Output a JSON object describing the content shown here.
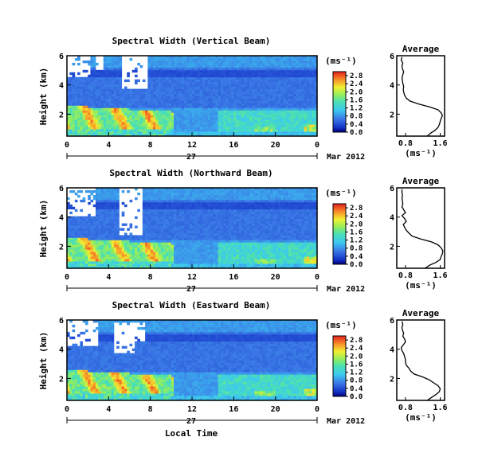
{
  "chart_data": [
    {
      "type": "heatmap",
      "title": "Spectral Width (Vertical Beam)",
      "ylabel": "Height (km)",
      "x_ticks": [
        "0",
        "4",
        "8",
        "12",
        "16",
        "20",
        "0"
      ],
      "y_ticks": [
        "2",
        "4",
        "6"
      ],
      "ylim": [
        0.5,
        6
      ],
      "xlim": [
        0,
        24
      ],
      "date_day": "27",
      "date_month": "Mar 2012",
      "colorbar": {
        "unit": "(ms⁻¹)",
        "ticks": [
          "0.0",
          "0.4",
          "0.8",
          "1.2",
          "1.6",
          "2.0",
          "2.4",
          "2.8"
        ],
        "range": [
          0,
          3.0
        ]
      },
      "average": {
        "title": "Average",
        "xlabel": "(ms⁻¹)",
        "x_ticks": [
          "0.8",
          "1.6"
        ],
        "y_ticks": [
          "2",
          "4",
          "6"
        ],
        "xlim": [
          0.6,
          1.7
        ],
        "height": [
          0.5,
          0.7,
          0.9,
          1.1,
          1.3,
          1.5,
          1.7,
          1.9,
          2.1,
          2.3,
          2.5,
          2.7,
          2.9,
          3.1,
          3.3,
          3.5,
          3.7,
          3.9,
          4.1,
          4.3,
          4.5,
          4.7,
          4.9,
          5.1,
          5.3,
          5.5,
          5.7,
          5.9
        ],
        "width": [
          1.3,
          1.38,
          1.48,
          1.55,
          1.58,
          1.6,
          1.62,
          1.65,
          1.62,
          1.55,
          1.35,
          1.1,
          0.9,
          0.82,
          0.78,
          0.76,
          0.75,
          0.76,
          0.74,
          0.73,
          0.72,
          0.74,
          0.76,
          0.73,
          0.72,
          0.74,
          0.7,
          0.72
        ]
      }
    },
    {
      "type": "heatmap",
      "title": "Spectral Width (Northward Beam)",
      "ylabel": "Height (km)",
      "x_ticks": [
        "0",
        "4",
        "8",
        "12",
        "16",
        "20",
        "0"
      ],
      "y_ticks": [
        "2",
        "4",
        "6"
      ],
      "ylim": [
        0.5,
        6
      ],
      "xlim": [
        0,
        24
      ],
      "date_day": "27",
      "date_month": "Mar 2012",
      "colorbar": {
        "unit": "(ms⁻¹)",
        "ticks": [
          "0.0",
          "0.4",
          "0.8",
          "1.2",
          "1.6",
          "2.0",
          "2.4",
          "2.8"
        ],
        "range": [
          0,
          3.0
        ]
      },
      "average": {
        "title": "Average",
        "xlabel": "(ms⁻¹)",
        "x_ticks": [
          "0.8",
          "1.6"
        ],
        "y_ticks": [
          "2",
          "4",
          "6"
        ],
        "xlim": [
          0.6,
          1.7
        ],
        "height": [
          0.5,
          0.7,
          0.9,
          1.1,
          1.3,
          1.5,
          1.7,
          1.9,
          2.1,
          2.3,
          2.5,
          2.7,
          2.9,
          3.1,
          3.3,
          3.5,
          3.7,
          3.9,
          4.1,
          4.3,
          4.5,
          4.7,
          4.9,
          5.1,
          5.3,
          5.5,
          5.7,
          5.9
        ],
        "width": [
          1.25,
          1.35,
          1.5,
          1.6,
          1.62,
          1.65,
          1.66,
          1.62,
          1.55,
          1.4,
          1.15,
          0.95,
          0.88,
          0.82,
          0.78,
          0.75,
          0.82,
          0.78,
          0.72,
          0.8,
          0.76,
          0.72,
          0.74,
          0.73,
          0.72,
          0.73,
          0.72,
          0.72
        ]
      }
    },
    {
      "type": "heatmap",
      "title": "Spectral Width (Eastward Beam)",
      "ylabel": "Height (km)",
      "xlabel": "Local Time",
      "x_ticks": [
        "0",
        "4",
        "8",
        "12",
        "16",
        "20",
        "0"
      ],
      "y_ticks": [
        "2",
        "4",
        "6"
      ],
      "ylim": [
        0.5,
        6
      ],
      "xlim": [
        0,
        24
      ],
      "date_day": "27",
      "date_month": "Mar 2012",
      "colorbar": {
        "unit": "(ms⁻¹)",
        "ticks": [
          "0.0",
          "0.4",
          "0.8",
          "1.2",
          "1.6",
          "2.0",
          "2.4",
          "2.8"
        ],
        "range": [
          0,
          3.0
        ]
      },
      "average": {
        "title": "Average",
        "xlabel": "(ms⁻¹)",
        "x_ticks": [
          "0.8",
          "1.6"
        ],
        "y_ticks": [
          "2",
          "4",
          "6"
        ],
        "xlim": [
          0.6,
          1.7
        ],
        "height": [
          0.5,
          0.7,
          0.9,
          1.1,
          1.3,
          1.5,
          1.7,
          1.9,
          2.1,
          2.3,
          2.5,
          2.7,
          2.9,
          3.1,
          3.3,
          3.5,
          3.7,
          3.9,
          4.1,
          4.3,
          4.5,
          4.7,
          4.9,
          5.1,
          5.3,
          5.5,
          5.7,
          5.9
        ],
        "width": [
          1.3,
          1.4,
          1.5,
          1.58,
          1.6,
          1.55,
          1.45,
          1.35,
          1.2,
          1.0,
          0.92,
          0.88,
          0.82,
          0.8,
          0.8,
          0.78,
          0.76,
          0.72,
          0.7,
          0.75,
          0.8,
          0.78,
          0.74,
          0.76,
          0.73,
          0.72,
          0.74,
          0.72
        ]
      }
    }
  ]
}
